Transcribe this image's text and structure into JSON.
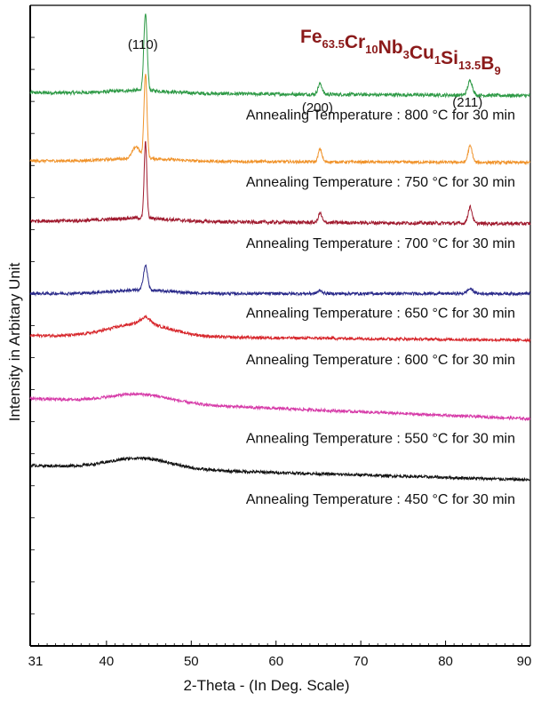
{
  "chart_data": {
    "type": "line",
    "title": "Fe63.5Cr10Nb3Cu1Si13.5B9",
    "title_parts": [
      {
        "text": "Fe",
        "sub": "63.5"
      },
      {
        "text": "Cr",
        "sub": "10"
      },
      {
        "text": "Nb",
        "sub": "3"
      },
      {
        "text": "Cu",
        "sub": "1"
      },
      {
        "text": "Si",
        "sub": "13.5"
      },
      {
        "text": "B",
        "sub": "9"
      }
    ],
    "title_color": "#8b1a1a",
    "xlabel": "2-Theta - (In Deg. Scale)",
    "ylabel": "Intensity in Arbitary Unit",
    "xlim": [
      31,
      90
    ],
    "x_ticks": [
      "31",
      "40",
      "50",
      "60",
      "70",
      "80",
      "90"
    ],
    "x_tick_values": [
      31,
      40,
      50,
      60,
      70,
      80,
      90
    ],
    "grid": false,
    "y_ticks_labeled": false,
    "peak_labels": [
      {
        "text": "(110)",
        "x": 44.6
      },
      {
        "text": "(200)",
        "x": 65.2
      },
      {
        "text": "(211)",
        "x": 82.9
      }
    ],
    "series": [
      {
        "name": "Annealing Temperature : 800 °C for 30 min",
        "color": "#2e9a46",
        "baseline": 9.45,
        "tilt": 0.05,
        "noise": 0.06,
        "hump": 0.05,
        "peaks": [
          {
            "x": 44.6,
            "h": 1.3,
            "w": 0.28
          },
          {
            "x": 65.2,
            "h": 0.18,
            "w": 0.35
          },
          {
            "x": 82.9,
            "h": 0.25,
            "w": 0.4
          }
        ]
      },
      {
        "name": "Annealing Temperature : 750 °C for 30 min",
        "color": "#f0932b",
        "baseline": 8.3,
        "tilt": 0.03,
        "noise": 0.05,
        "hump": 0.05,
        "peaks": [
          {
            "x": 43.5,
            "h": 0.2,
            "w": 0.6
          },
          {
            "x": 44.6,
            "h": 1.45,
            "w": 0.25
          },
          {
            "x": 65.2,
            "h": 0.22,
            "w": 0.3
          },
          {
            "x": 82.9,
            "h": 0.28,
            "w": 0.35
          }
        ]
      },
      {
        "name": "Annealing Temperature : 700 °C for 30 min",
        "color": "#a01a2e",
        "baseline": 7.25,
        "tilt": 0.05,
        "noise": 0.06,
        "hump": 0.06,
        "peaks": [
          {
            "x": 44.6,
            "h": 1.3,
            "w": 0.22
          },
          {
            "x": 65.2,
            "h": 0.16,
            "w": 0.3
          },
          {
            "x": 82.9,
            "h": 0.28,
            "w": 0.35
          }
        ]
      },
      {
        "name": "Annealing Temperature : 650 °C for 30 min",
        "color": "#2a2a8a",
        "baseline": 6.05,
        "tilt": 0.0,
        "noise": 0.05,
        "hump": 0.06,
        "peaks": [
          {
            "x": 44.6,
            "h": 0.42,
            "w": 0.35
          },
          {
            "x": 65.2,
            "h": 0.05,
            "w": 0.4
          },
          {
            "x": 82.9,
            "h": 0.08,
            "w": 0.5
          }
        ]
      },
      {
        "name": "Annealing Temperature : 600 °C for 30 min",
        "color": "#d7262b",
        "baseline": 5.25,
        "tilt": 0.08,
        "noise": 0.05,
        "hump": 0.22,
        "peaks": [
          {
            "x": 44.6,
            "h": 0.12,
            "w": 0.8
          }
        ]
      },
      {
        "name": "Annealing Temperature : 550 °C for 30 min",
        "color": "#d63aa8",
        "baseline": 3.9,
        "tilt": 0.35,
        "noise": 0.05,
        "hump": 0.15,
        "peaks": []
      },
      {
        "name": "Annealing Temperature : 450 °C for 30 min",
        "color": "#111111",
        "baseline": 2.85,
        "tilt": 0.25,
        "noise": 0.05,
        "hump": 0.18,
        "peaks": []
      }
    ]
  }
}
